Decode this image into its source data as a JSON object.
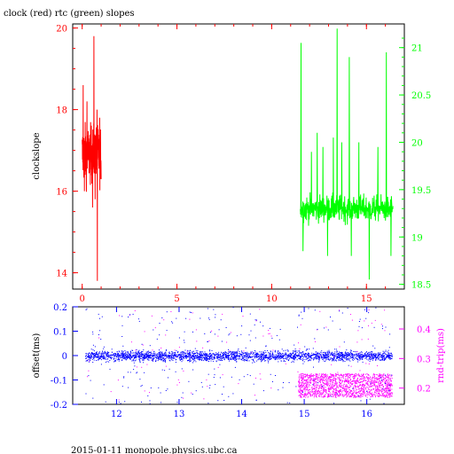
{
  "title": "clock (red) rtc (green) slopes",
  "footer": "2015-01-11 monopole.physics.ubc.ca",
  "colors": {
    "clock": "#ff0000",
    "rtc": "#00ff00",
    "offset": "#0000ff",
    "rndtrip": "#ff00ff",
    "axis_black": "#000000"
  },
  "chart_data": [
    {
      "type": "line",
      "title": "clock (red) rtc (green) slopes",
      "xlabel": "",
      "ylabel": "clockslope",
      "y2label": "",
      "xlim": [
        -0.5,
        17.0
      ],
      "ylim": [
        13.6,
        20.1
      ],
      "y2lim": [
        18.45,
        21.25
      ],
      "x_ticks": [
        0,
        5,
        10,
        15
      ],
      "y_ticks": [
        14,
        16,
        18,
        20
      ],
      "y2_ticks": [
        18.5,
        19,
        19.5,
        20,
        20.5,
        21
      ],
      "grid": false,
      "series": [
        {
          "name": "clock",
          "axis": "left",
          "color": "#ff0000",
          "x_range": [
            0.0,
            1.0
          ],
          "baseline": 16.9,
          "spread": 0.6,
          "spikes": [
            {
              "x": 0.05,
              "y": 18.6
            },
            {
              "x": 0.12,
              "y": 16.0
            },
            {
              "x": 0.25,
              "y": 18.2
            },
            {
              "x": 0.55,
              "y": 15.6
            },
            {
              "x": 0.62,
              "y": 19.8
            },
            {
              "x": 0.68,
              "y": 15.8
            },
            {
              "x": 0.78,
              "y": 18.0
            },
            {
              "x": 0.8,
              "y": 13.8
            },
            {
              "x": 0.92,
              "y": 17.8
            }
          ]
        },
        {
          "name": "rtc",
          "axis": "right",
          "color": "#00ff00",
          "x_range": [
            11.5,
            16.4
          ],
          "baseline": 19.3,
          "spread": 0.12,
          "spikes": [
            {
              "x": 11.55,
              "y": 21.05
            },
            {
              "x": 11.65,
              "y": 18.85
            },
            {
              "x": 12.1,
              "y": 19.9
            },
            {
              "x": 12.4,
              "y": 20.1
            },
            {
              "x": 12.7,
              "y": 19.95
            },
            {
              "x": 12.95,
              "y": 18.8
            },
            {
              "x": 13.25,
              "y": 20.05
            },
            {
              "x": 13.45,
              "y": 21.2
            },
            {
              "x": 13.7,
              "y": 20.0
            },
            {
              "x": 14.1,
              "y": 20.9
            },
            {
              "x": 14.2,
              "y": 18.8
            },
            {
              "x": 14.6,
              "y": 20.0
            },
            {
              "x": 15.15,
              "y": 18.55
            },
            {
              "x": 15.6,
              "y": 19.95
            },
            {
              "x": 16.05,
              "y": 20.95
            },
            {
              "x": 16.3,
              "y": 18.8
            }
          ]
        }
      ]
    },
    {
      "type": "scatter",
      "xlabel": "",
      "ylabel": "offset(ms)",
      "y2label": "rnd-trip(ms)",
      "xlim": [
        11.3,
        16.6
      ],
      "ylim": [
        -0.2,
        0.2
      ],
      "y2lim": [
        0.145,
        0.475
      ],
      "x_ticks": [
        12,
        13,
        14,
        15,
        16
      ],
      "y_ticks": [
        -0.2,
        -0.1,
        0,
        0.1,
        0.2
      ],
      "y2_ticks": [
        0.2,
        0.3,
        0.4
      ],
      "grid": false,
      "series": [
        {
          "name": "offset",
          "axis": "left",
          "color": "#0000ff",
          "x_range": [
            11.5,
            16.4
          ],
          "center": 0.0,
          "band": 0.022,
          "outlier_range": [
            -0.2,
            0.2
          ]
        },
        {
          "name": "rnd-trip",
          "axis": "right",
          "color": "#ff00ff",
          "x_range": [
            11.5,
            16.4
          ],
          "dense_x_range": [
            14.9,
            16.4
          ],
          "dense_band": [
            0.17,
            0.25
          ],
          "sparse_range": [
            0.16,
            0.47
          ]
        }
      ]
    }
  ]
}
